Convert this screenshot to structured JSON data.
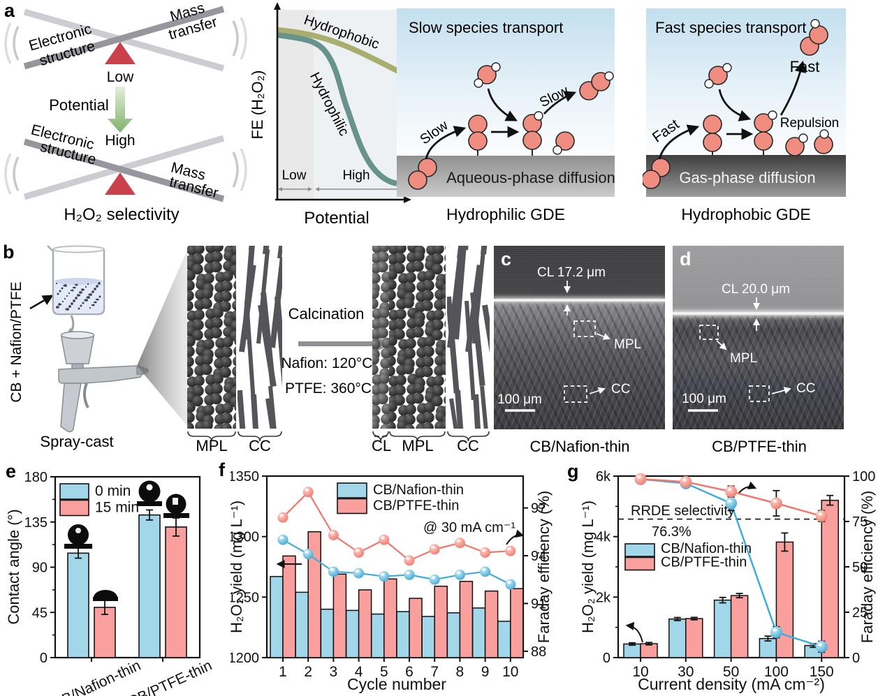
{
  "panel_letters": {
    "a": "a",
    "b": "b",
    "c": "c",
    "d": "d",
    "e": "e",
    "f": "f",
    "g": "g"
  },
  "colors": {
    "bar_blue": "#a2d7e9",
    "bar_pink": "#f9a09e",
    "line_blue": "#3facdc",
    "line_pink": "#f1766c",
    "triangle_red": "#c9414a",
    "hydrophobic_curve": "#a9ae6f",
    "hydrophilic_curve": "#68938d",
    "molecule": "#ef8d80",
    "seesaw_dark": "#96969e",
    "seesaw_light": "#cccdd2"
  },
  "panel_a": {
    "seesaw": {
      "electronic1": "Electronic",
      "electronic2": "structure",
      "mass1": "Mass",
      "mass2": "transfer",
      "low": "Low",
      "potential": "Potential",
      "high": "High",
      "caption": "H₂O₂ selectivity"
    },
    "fe_plot": {
      "ylabel": "FE (H₂O₂)",
      "xlabel": "Potential",
      "hydrophobic": "Hydrophobic",
      "hydrophilic": "Hydrophilic",
      "low": "Low",
      "high": "High"
    },
    "gde_hydrophilic": {
      "title": "Slow species transport",
      "slow1": "Slow",
      "slow2": "Slow",
      "band": "Aqueous-phase diffusion",
      "caption": "Hydrophilic GDE"
    },
    "gde_hydrophobic": {
      "title": "Fast species transport",
      "fast1": "Fast",
      "fast2": "Fast",
      "repulsion": "Repulsion",
      "band": "Gas-phase diffusion",
      "caption": "Hydrophobic GDE"
    }
  },
  "panel_b": {
    "ink_label": "CB + Nafion/PTFE",
    "spray_cast": "Spray-cast",
    "mpl1": "MPL",
    "cc1": "CC",
    "calcination": "Calcination",
    "nafion": "Nafion: 120°C",
    "ptfe": "PTFE: 360°C",
    "cl2": "CL",
    "mpl2": "MPL",
    "cc2": "CC"
  },
  "panel_c": {
    "cl": "CL 17.2 μm",
    "mpl": "MPL",
    "cc": "CC",
    "scalebar": "100 μm",
    "caption": "CB/Nafion-thin"
  },
  "panel_d": {
    "cl": "CL 20.0 μm",
    "mpl": "MPL",
    "cc": "CC",
    "scalebar": "100 μm",
    "caption": "CB/PTFE-thin"
  },
  "chart_data": [
    {
      "id": "e",
      "type": "bar",
      "ylabel": "Contact angle (°)",
      "ylim": [
        0,
        180
      ],
      "yticks": [
        0,
        45,
        90,
        135,
        180
      ],
      "categories": [
        "CB/Nafion-thin",
        "CB/PTFE-thin"
      ],
      "series": [
        {
          "name": "0 min",
          "color": "#a2d7e9",
          "values": [
            104,
            142
          ],
          "errors": [
            5,
            5
          ]
        },
        {
          "name": "15 min",
          "color": "#f9a09e",
          "values": [
            50,
            130
          ],
          "errors": [
            7,
            9
          ]
        }
      ],
      "legend_position": "top-left",
      "grid": false
    },
    {
      "id": "f",
      "type": "bar+line",
      "xlabel": "Cycle number",
      "categories": [
        "1",
        "2",
        "3",
        "4",
        "5",
        "6",
        "7",
        "8",
        "9",
        "10"
      ],
      "left_axis": {
        "label": "H₂O₂ yield (mg L⁻¹)",
        "lim": [
          1200,
          1350
        ],
        "ticks": [
          1200,
          1250,
          1300,
          1350
        ]
      },
      "right_axis": {
        "label": "Faraday efficiency (%)",
        "lim": [
          87.6,
          99.0
        ],
        "ticks": [
          88,
          91,
          94,
          97
        ]
      },
      "annotation": "@ 30 mA cm⁻¹",
      "bars": [
        {
          "name": "CB/Nafion-thin",
          "color": "#a2d7e9",
          "values": [
            1267,
            1254,
            1240,
            1239,
            1236,
            1238,
            1234,
            1237,
            1241,
            1230
          ]
        },
        {
          "name": "CB/PTFE-thin",
          "color": "#f9a09e",
          "values": [
            1284,
            1304,
            1269,
            1256,
            1265,
            1249,
            1259,
            1263,
            1255,
            1257
          ]
        }
      ],
      "lines": [
        {
          "name": "CB/Nafion-thin",
          "color": "#3facdc",
          "values": [
            95.0,
            94.1,
            93.0,
            92.9,
            92.7,
            92.8,
            92.5,
            92.8,
            93.0,
            92.2
          ]
        },
        {
          "name": "CB/PTFE-thin",
          "color": "#f1766c",
          "values": [
            96.4,
            98.0,
            95.3,
            94.2,
            95.0,
            93.7,
            94.4,
            94.8,
            94.2,
            94.3
          ]
        }
      ],
      "grid": false
    },
    {
      "id": "g",
      "type": "bar+line",
      "xlabel": "Current density (mA cm⁻²)",
      "categories": [
        "10",
        "30",
        "50",
        "100",
        "150"
      ],
      "left_axis": {
        "label": "H₂O₂ yield (mg L⁻¹)",
        "lim": [
          0,
          6000
        ],
        "ticks": [
          0,
          2000,
          4000,
          6000
        ],
        "tick_labels": [
          "0",
          "2k",
          "4k",
          "6k"
        ]
      },
      "right_axis": {
        "label": "Faraday efficiency (%)",
        "lim": [
          0,
          100
        ],
        "ticks": [
          0,
          25,
          50,
          75,
          100
        ]
      },
      "reference_line": {
        "value": 76.3,
        "label": "RRDE selectivity",
        "value_label": "76.3%"
      },
      "bars": [
        {
          "name": "CB/Nafion-thin",
          "color": "#a2d7e9",
          "values": [
            450,
            1275,
            1900,
            630,
            400
          ],
          "errors": [
            40,
            50,
            90,
            80,
            60
          ]
        },
        {
          "name": "CB/PTFE-thin",
          "color": "#f9a09e",
          "values": [
            460,
            1290,
            2050,
            3820,
            5200
          ],
          "errors": [
            40,
            40,
            70,
            300,
            160
          ]
        }
      ],
      "lines": [
        {
          "name": "CB/Nafion-thin",
          "color": "#3facdc",
          "values": [
            98.3,
            96.0,
            85.0,
            14.0,
            6.0
          ],
          "errors": [
            2,
            2,
            4,
            3,
            3
          ]
        },
        {
          "name": "CB/PTFE-thin",
          "color": "#f1766c",
          "values": [
            98.4,
            96.8,
            91.5,
            85.0,
            78.0
          ],
          "errors": [
            2,
            2,
            3,
            7,
            3
          ]
        }
      ],
      "grid": false
    }
  ]
}
